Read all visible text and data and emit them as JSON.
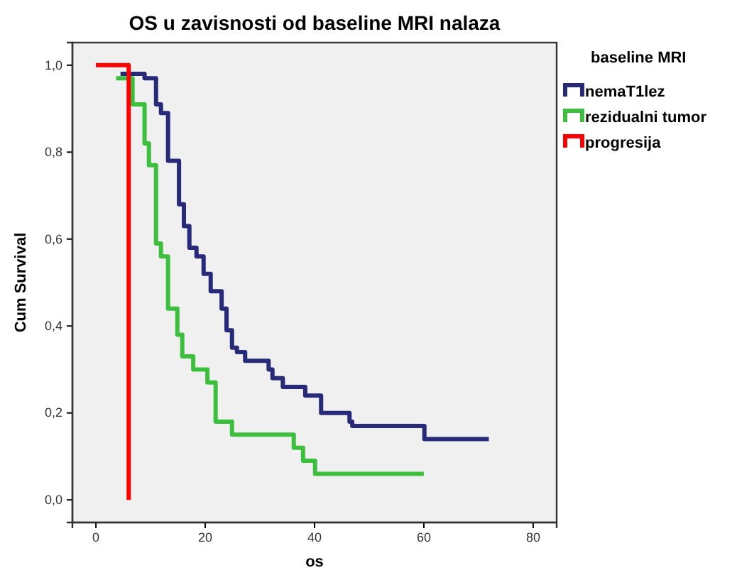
{
  "chart_data": {
    "type": "step",
    "title": "OS u zavisnosti od baseline MRI nalaza",
    "xlabel": "os",
    "ylabel": "Cum Survival",
    "legend_title": "baseline MRI",
    "legend": "top right",
    "grid": false,
    "xlim": [
      -4.3,
      84.3
    ],
    "ylim": [
      -0.052,
      1.052
    ],
    "xticks": [
      0,
      20,
      40,
      60,
      80
    ],
    "yticks": [
      {
        "value": 0,
        "label": "0,0"
      },
      {
        "value": 0.2,
        "label": "0,2"
      },
      {
        "value": 0.4,
        "label": "0,4"
      },
      {
        "value": 0.6,
        "label": "0,6"
      },
      {
        "value": 0.8,
        "label": "0,8"
      },
      {
        "value": 1,
        "label": "1,0"
      }
    ],
    "series": [
      {
        "name": "nemaT1lez",
        "color": "#262a78",
        "x": [
          4.5,
          8.9,
          11,
          11.9,
          13.2,
          15.2,
          16.1,
          17.1,
          18.4,
          19.7,
          21,
          23,
          23.9,
          24.9,
          25.8,
          27.3,
          31.6,
          32.3,
          34.2,
          38.3,
          41.2,
          46.4,
          46.9,
          60.1,
          71.9
        ],
        "values": [
          0.98,
          0.97,
          0.91,
          0.89,
          0.78,
          0.68,
          0.63,
          0.58,
          0.56,
          0.52,
          0.48,
          0.44,
          0.39,
          0.35,
          0.34,
          0.32,
          0.3,
          0.28,
          0.26,
          0.24,
          0.2,
          0.18,
          0.17,
          0.14,
          0.14
        ]
      },
      {
        "name": "rezidualni tumor",
        "color": "#3cbf3c",
        "x": [
          3.7,
          6.7,
          8.9,
          9.7,
          11,
          11.9,
          13.2,
          14.9,
          15.8,
          17.8,
          20.4,
          21.9,
          24.9,
          36.2,
          37.9,
          40.1,
          60
        ],
        "values": [
          0.97,
          0.91,
          0.82,
          0.77,
          0.59,
          0.56,
          0.44,
          0.38,
          0.33,
          0.3,
          0.27,
          0.18,
          0.15,
          0.12,
          0.09,
          0.06,
          0.06
        ]
      },
      {
        "name": "progresija",
        "color": "#ff0000",
        "x": [
          0,
          6,
          6
        ],
        "values": [
          1,
          1,
          0
        ]
      }
    ]
  }
}
